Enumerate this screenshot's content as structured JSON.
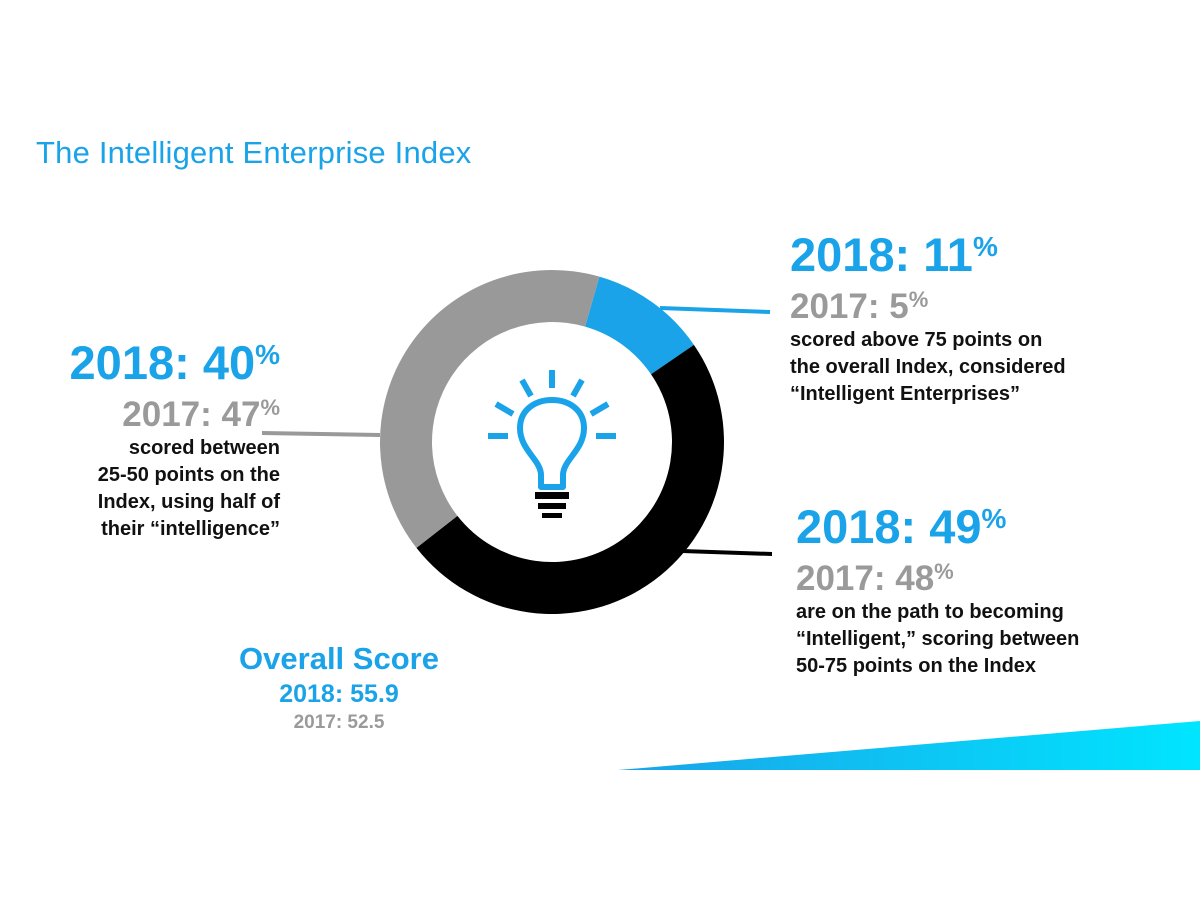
{
  "title": "The Intelligent Enterprise Index",
  "chart_data": {
    "type": "pie",
    "style": "donut",
    "categories": [
      "scored above 75 points",
      "50-75 points",
      "25-50 points"
    ],
    "values": [
      11,
      49,
      40
    ],
    "colors": [
      "#1aa3e8",
      "#000000",
      "#999999"
    ],
    "center_icon": "lightbulb-icon"
  },
  "callouts": {
    "left": {
      "y2018": "2018: 40",
      "y2017": "2017: 47",
      "pct": "%",
      "desc_lines": [
        "scored between",
        "25-50 points on the",
        "Index, using half of",
        "their “intelligence”"
      ]
    },
    "top_right": {
      "y2018": "2018: 11",
      "y2017": "2017: 5",
      "pct": "%",
      "desc_lines": [
        "scored above 75 points on",
        "the overall Index, considered",
        "“Intelligent Enterprises”"
      ]
    },
    "bottom_right": {
      "y2018": "2018: 49",
      "y2017": "2017: 48",
      "pct": "%",
      "desc_lines": [
        "are on the path to becoming",
        "“Intelligent,” scoring between",
        "50-75 points on the Index"
      ]
    }
  },
  "overall": {
    "title": "Overall Score",
    "y2018": "2018: 55.9",
    "y2017": "2017: 52.5"
  },
  "colors": {
    "accent": "#1aa3e8",
    "gray": "#999999",
    "text": "#111111",
    "gradient_start": "#1aa3e8",
    "gradient_end": "#00e5ff"
  }
}
